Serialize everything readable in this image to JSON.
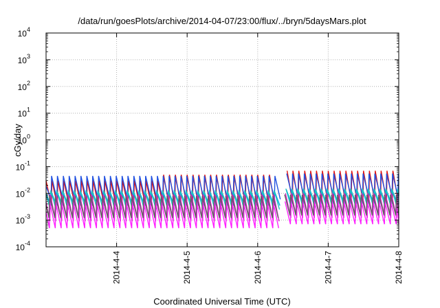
{
  "chart_data": {
    "type": "line",
    "title": "/data/run/goesPlots/archive/2014-04-07/23:00/flux/../bryn/5daysMars.plot",
    "xlabel": "Coordinated Universal Time (UTC)",
    "ylabel": "cGy/day",
    "xlim": [
      "2014-04-03T00:00",
      "2014-04-08T00:00"
    ],
    "yscale": "log",
    "ylim": [
      0.0001,
      10000
    ],
    "x_ticks": [
      "2014-4-4",
      "2014-4-5",
      "2014-4-6",
      "2014-4-7",
      "2014-4-8"
    ],
    "y_ticks": [
      {
        "base": "10",
        "exp": "-4",
        "value": 0.0001
      },
      {
        "base": "10",
        "exp": "-3",
        "value": 0.001
      },
      {
        "base": "10",
        "exp": "-2",
        "value": 0.01
      },
      {
        "base": "10",
        "exp": "-1",
        "value": 0.1
      },
      {
        "base": "10",
        "exp": "0",
        "value": 1
      },
      {
        "base": "10",
        "exp": "1",
        "value": 10
      },
      {
        "base": "10",
        "exp": "2",
        "value": 100
      },
      {
        "base": "10",
        "exp": "3",
        "value": 1000
      },
      {
        "base": "10",
        "exp": "4",
        "value": 10000
      }
    ],
    "grid": true,
    "sawtooth_period_hours": 2,
    "data_gap_x": "2014-04-06T06:00",
    "series": [
      {
        "color": "#e01010",
        "peak": [
          0.03,
          0.05,
          0.07
        ],
        "trough": [
          0.0035,
          0.0035,
          0.005
        ],
        "first_peak": 0.03
      },
      {
        "color": "#2050e0",
        "peak": [
          0.045,
          0.045,
          0.055
        ],
        "trough": [
          0.006,
          0.006,
          0.008
        ],
        "first_peak": 0.02
      },
      {
        "color": "#00b0e0",
        "peak": [
          0.012,
          0.012,
          0.014
        ],
        "trough": [
          0.0035,
          0.0035,
          0.004
        ],
        "first_peak": 0.012
      },
      {
        "color": "#20c0c0",
        "peak": [
          0.013,
          0.013,
          0.015
        ],
        "trough": [
          0.0025,
          0.0025,
          0.003
        ],
        "first_peak": 0.013
      },
      {
        "color": "#d020c0",
        "peak": [
          0.009,
          0.009,
          0.01
        ],
        "trough": [
          0.0009,
          0.0009,
          0.0012
        ],
        "first_peak": 0.009
      },
      {
        "color": "#ff20ff",
        "peak": [
          0.0045,
          0.0045,
          0.005
        ],
        "trough": [
          0.0005,
          0.0005,
          0.0007
        ],
        "first_peak": 0.0045
      },
      {
        "color": "#606060",
        "peak": [
          0.008,
          0.008,
          0.009
        ],
        "trough": [
          0.0012,
          0.0012,
          0.0015
        ],
        "first_peak": 0.008
      }
    ]
  }
}
